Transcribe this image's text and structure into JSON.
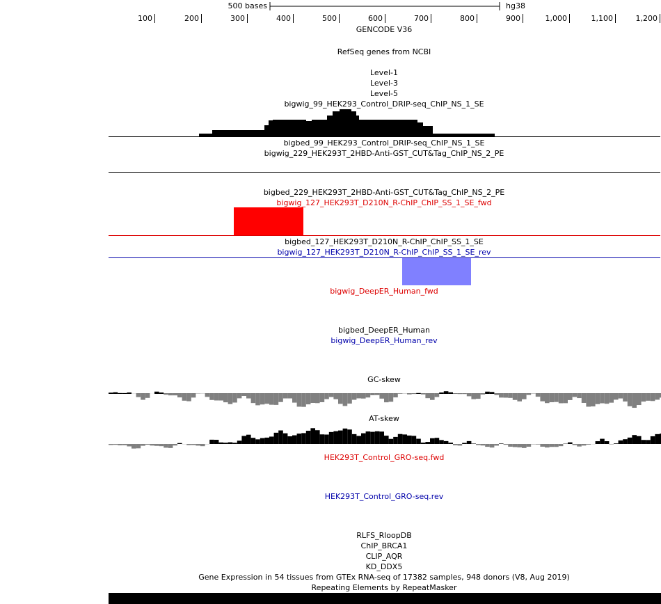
{
  "ruler": {
    "scale_label": "500 bases",
    "assembly": "hg38",
    "ticks": [
      "100",
      "200",
      "300",
      "400",
      "500",
      "600",
      "700",
      "800",
      "900",
      "1,000",
      "1,100",
      "1,200"
    ]
  },
  "tracks": [
    {
      "text": "GENCODE V36",
      "color": "#000000"
    },
    {
      "text": "RefSeq genes from NCBI",
      "color": "#000000"
    },
    {
      "text": "Level-1",
      "color": "#000000"
    },
    {
      "text": "Level-3",
      "color": "#000000"
    },
    {
      "text": "Level-5",
      "color": "#000000"
    },
    {
      "text": "bigwig_99_HEK293_Control_DRIP-seq_ChIP_NS_1_SE",
      "color": "#000000"
    },
    {
      "text": "bigbed_99_HEK293_Control_DRIP-seq_ChIP_NS_1_SE",
      "color": "#000000"
    },
    {
      "text": "bigwig_229_HEK293T_2HBD-Anti-GST_CUT&Tag_ChIP_NS_2_PE",
      "color": "#000000"
    },
    {
      "text": "bigbed_229_HEK293T_2HBD-Anti-GST_CUT&Tag_ChIP_NS_2_PE",
      "color": "#000000"
    },
    {
      "text": "bigwig_127_HEK293T_D210N_R-ChIP_ChIP_SS_1_SE_fwd",
      "color": "#dd0000"
    },
    {
      "text": "bigbed_127_HEK293T_D210N_R-ChIP_ChIP_SS_1_SE",
      "color": "#000000"
    },
    {
      "text": "bigwig_127_HEK293T_D210N_R-ChIP_ChIP_SS_1_SE_rev",
      "color": "#0000aa"
    },
    {
      "text": "bigwig_DeepER_Human_fwd",
      "color": "#dd0000"
    },
    {
      "text": "bigbed_DeepER_Human",
      "color": "#000000"
    },
    {
      "text": "bigwig_DeepER_Human_rev",
      "color": "#0000aa"
    },
    {
      "text": "GC-skew",
      "color": "#000000"
    },
    {
      "text": "AT-skew",
      "color": "#000000"
    },
    {
      "text": "HEK293T_Control_GRO-seq.fwd",
      "color": "#dd0000"
    },
    {
      "text": "HEK293T_Control_GRO-seq.rev",
      "color": "#0000aa"
    },
    {
      "text": "RLFS_RloopDB",
      "color": "#000000"
    },
    {
      "text": "ChIP_BRCA1",
      "color": "#000000"
    },
    {
      "text": "CLIP_AQR",
      "color": "#000000"
    },
    {
      "text": "KD_DDX5",
      "color": "#000000"
    },
    {
      "text": "Gene Expression in 54 tissues from GTEx RNA-seq of 17382 samples, 948 donors (V8, Aug 2019)",
      "color": "#000000"
    },
    {
      "text": "Repeating Elements by RepeatMasker",
      "color": "#000000"
    }
  ]
}
